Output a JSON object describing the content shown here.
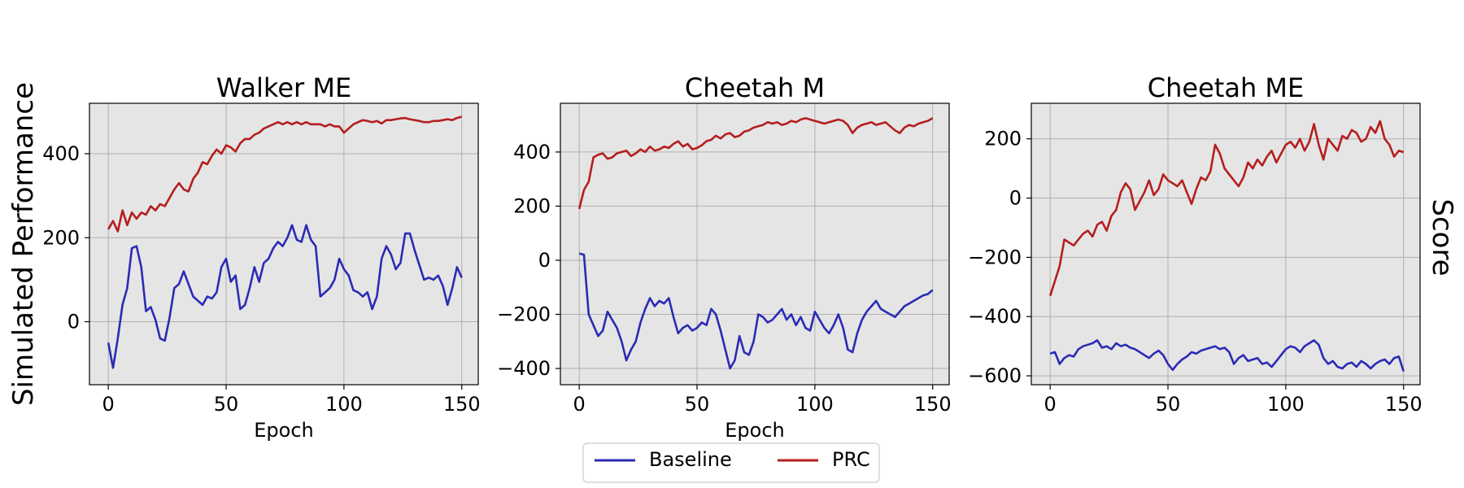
{
  "figure": {
    "ylabel_left": "Simulated Performance",
    "ylabel_right": "Score"
  },
  "legend": {
    "position": "bottom-center",
    "entries": [
      {
        "label": "Baseline",
        "color": "#2b2bb5"
      },
      {
        "label": "PRC",
        "color": "#b51e1e"
      }
    ]
  },
  "chart_data": [
    {
      "type": "line",
      "title": "Walker ME",
      "xlabel": "Epoch",
      "ylabel": "",
      "xlim": [
        -8,
        157
      ],
      "ylim": [
        -150,
        520
      ],
      "xticks": [
        0,
        50,
        100,
        150
      ],
      "yticks": [
        0,
        200,
        400
      ],
      "grid": true,
      "series": [
        {
          "name": "Baseline",
          "color": "#2b2bb5",
          "x": [
            0,
            2,
            4,
            6,
            8,
            10,
            12,
            14,
            16,
            18,
            20,
            22,
            24,
            26,
            28,
            30,
            32,
            34,
            36,
            38,
            40,
            42,
            44,
            46,
            48,
            50,
            52,
            54,
            56,
            58,
            60,
            62,
            64,
            66,
            68,
            70,
            72,
            74,
            76,
            78,
            80,
            82,
            84,
            86,
            88,
            90,
            92,
            94,
            96,
            98,
            100,
            102,
            104,
            106,
            108,
            110,
            112,
            114,
            116,
            118,
            120,
            122,
            124,
            126,
            128,
            130,
            132,
            134,
            136,
            138,
            140,
            142,
            144,
            146,
            148,
            150
          ],
          "y": [
            -50,
            -110,
            -40,
            40,
            80,
            175,
            180,
            130,
            25,
            35,
            5,
            -40,
            -45,
            10,
            80,
            90,
            120,
            90,
            60,
            50,
            40,
            60,
            55,
            70,
            130,
            150,
            95,
            110,
            30,
            40,
            80,
            130,
            95,
            140,
            150,
            175,
            190,
            180,
            200,
            230,
            195,
            190,
            230,
            195,
            180,
            60,
            70,
            80,
            100,
            150,
            125,
            110,
            75,
            70,
            60,
            70,
            30,
            60,
            150,
            180,
            160,
            125,
            140,
            210,
            210,
            170,
            135,
            100,
            105,
            100,
            110,
            85,
            40,
            80,
            130,
            105
          ]
        },
        {
          "name": "PRC",
          "color": "#b51e1e",
          "x": [
            0,
            2,
            4,
            6,
            8,
            10,
            12,
            14,
            16,
            18,
            20,
            22,
            24,
            26,
            28,
            30,
            32,
            34,
            36,
            38,
            40,
            42,
            44,
            46,
            48,
            50,
            52,
            54,
            56,
            58,
            60,
            62,
            64,
            66,
            68,
            70,
            72,
            74,
            76,
            78,
            80,
            82,
            84,
            86,
            88,
            90,
            92,
            94,
            96,
            98,
            100,
            102,
            104,
            106,
            108,
            110,
            112,
            114,
            116,
            118,
            120,
            122,
            124,
            126,
            128,
            130,
            132,
            134,
            136,
            138,
            140,
            142,
            144,
            146,
            148,
            150
          ],
          "y": [
            220,
            240,
            215,
            265,
            230,
            260,
            245,
            260,
            255,
            275,
            265,
            280,
            275,
            295,
            315,
            330,
            315,
            310,
            340,
            355,
            380,
            375,
            395,
            410,
            400,
            420,
            415,
            405,
            425,
            435,
            435,
            445,
            450,
            460,
            465,
            470,
            475,
            470,
            475,
            470,
            475,
            470,
            475,
            470,
            470,
            470,
            465,
            470,
            465,
            465,
            450,
            460,
            470,
            475,
            480,
            478,
            475,
            478,
            472,
            480,
            480,
            482,
            484,
            485,
            482,
            480,
            478,
            475,
            475,
            478,
            478,
            480,
            482,
            480,
            485,
            488
          ]
        }
      ]
    },
    {
      "type": "line",
      "title": "Cheetah M",
      "xlabel": "Epoch",
      "ylabel": "",
      "xlim": [
        -8,
        157
      ],
      "ylim": [
        -460,
        580
      ],
      "xticks": [
        0,
        50,
        100,
        150
      ],
      "yticks": [
        -400,
        -200,
        0,
        200,
        400
      ],
      "grid": true,
      "series": [
        {
          "name": "Baseline",
          "color": "#2b2bb5",
          "x": [
            0,
            2,
            4,
            6,
            8,
            10,
            12,
            14,
            16,
            18,
            20,
            22,
            24,
            26,
            28,
            30,
            32,
            34,
            36,
            38,
            40,
            42,
            44,
            46,
            48,
            50,
            52,
            54,
            56,
            58,
            60,
            62,
            64,
            66,
            68,
            70,
            72,
            74,
            76,
            78,
            80,
            82,
            84,
            86,
            88,
            90,
            92,
            94,
            96,
            98,
            100,
            102,
            104,
            106,
            108,
            110,
            112,
            114,
            116,
            118,
            120,
            122,
            124,
            126,
            128,
            130,
            132,
            134,
            136,
            138,
            140,
            142,
            144,
            146,
            148,
            150
          ],
          "y": [
            25,
            20,
            -200,
            -240,
            -280,
            -260,
            -190,
            -220,
            -250,
            -300,
            -370,
            -330,
            -300,
            -230,
            -180,
            -140,
            -170,
            -150,
            -160,
            -140,
            -210,
            -270,
            -250,
            -240,
            -260,
            -250,
            -230,
            -240,
            -180,
            -200,
            -260,
            -330,
            -400,
            -370,
            -280,
            -340,
            -350,
            -300,
            -200,
            -210,
            -230,
            -220,
            -200,
            -180,
            -220,
            -200,
            -240,
            -210,
            -250,
            -260,
            -190,
            -220,
            -250,
            -270,
            -240,
            -200,
            -250,
            -330,
            -340,
            -270,
            -220,
            -190,
            -170,
            -150,
            -180,
            -190,
            -200,
            -210,
            -190,
            -170,
            -160,
            -150,
            -140,
            -130,
            -125,
            -110
          ]
        },
        {
          "name": "PRC",
          "color": "#b51e1e",
          "x": [
            0,
            2,
            4,
            6,
            8,
            10,
            12,
            14,
            16,
            18,
            20,
            22,
            24,
            26,
            28,
            30,
            32,
            34,
            36,
            38,
            40,
            42,
            44,
            46,
            48,
            50,
            52,
            54,
            56,
            58,
            60,
            62,
            64,
            66,
            68,
            70,
            72,
            74,
            76,
            78,
            80,
            82,
            84,
            86,
            88,
            90,
            92,
            94,
            96,
            98,
            100,
            102,
            104,
            106,
            108,
            110,
            112,
            114,
            116,
            118,
            120,
            122,
            124,
            126,
            128,
            130,
            132,
            134,
            136,
            138,
            140,
            142,
            144,
            146,
            148,
            150
          ],
          "y": [
            190,
            260,
            290,
            380,
            390,
            395,
            375,
            380,
            395,
            400,
            405,
            385,
            395,
            410,
            400,
            420,
            405,
            410,
            420,
            415,
            430,
            440,
            420,
            430,
            410,
            415,
            425,
            440,
            445,
            460,
            450,
            465,
            470,
            455,
            460,
            475,
            480,
            490,
            495,
            500,
            510,
            505,
            510,
            500,
            505,
            515,
            510,
            520,
            525,
            520,
            515,
            510,
            505,
            510,
            515,
            520,
            515,
            500,
            470,
            490,
            500,
            505,
            510,
            500,
            505,
            510,
            495,
            480,
            470,
            490,
            500,
            495,
            505,
            510,
            515,
            525
          ]
        }
      ]
    },
    {
      "type": "line",
      "title": "Cheetah ME",
      "xlabel": "",
      "ylabel": "",
      "xlim": [
        -8,
        157
      ],
      "ylim": [
        -630,
        320
      ],
      "xticks": [
        0,
        50,
        100,
        150
      ],
      "yticks": [
        -600,
        -400,
        -200,
        0,
        200
      ],
      "grid": true,
      "series": [
        {
          "name": "Baseline",
          "color": "#2b2bb5",
          "x": [
            0,
            2,
            4,
            6,
            8,
            10,
            12,
            14,
            16,
            18,
            20,
            22,
            24,
            26,
            28,
            30,
            32,
            34,
            36,
            38,
            40,
            42,
            44,
            46,
            48,
            50,
            52,
            54,
            56,
            58,
            60,
            62,
            64,
            66,
            68,
            70,
            72,
            74,
            76,
            78,
            80,
            82,
            84,
            86,
            88,
            90,
            92,
            94,
            96,
            98,
            100,
            102,
            104,
            106,
            108,
            110,
            112,
            114,
            116,
            118,
            120,
            122,
            124,
            126,
            128,
            130,
            132,
            134,
            136,
            138,
            140,
            142,
            144,
            146,
            148,
            150
          ],
          "y": [
            -525,
            -520,
            -560,
            -540,
            -530,
            -535,
            -510,
            -500,
            -495,
            -490,
            -480,
            -505,
            -500,
            -510,
            -490,
            -500,
            -495,
            -505,
            -510,
            -520,
            -530,
            -540,
            -525,
            -515,
            -530,
            -560,
            -580,
            -560,
            -545,
            -535,
            -520,
            -525,
            -515,
            -510,
            -505,
            -500,
            -510,
            -505,
            -520,
            -560,
            -540,
            -530,
            -550,
            -545,
            -540,
            -560,
            -555,
            -570,
            -550,
            -530,
            -510,
            -500,
            -505,
            -520,
            -500,
            -490,
            -480,
            -495,
            -540,
            -560,
            -550,
            -570,
            -575,
            -560,
            -555,
            -570,
            -550,
            -560,
            -575,
            -560,
            -550,
            -545,
            -560,
            -540,
            -535,
            -585
          ]
        },
        {
          "name": "PRC",
          "color": "#b51e1e",
          "x": [
            0,
            2,
            4,
            6,
            8,
            10,
            12,
            14,
            16,
            18,
            20,
            22,
            24,
            26,
            28,
            30,
            32,
            34,
            36,
            38,
            40,
            42,
            44,
            46,
            48,
            50,
            52,
            54,
            56,
            58,
            60,
            62,
            64,
            66,
            68,
            70,
            72,
            74,
            76,
            78,
            80,
            82,
            84,
            86,
            88,
            90,
            92,
            94,
            96,
            98,
            100,
            102,
            104,
            106,
            108,
            110,
            112,
            114,
            116,
            118,
            120,
            122,
            124,
            126,
            128,
            130,
            132,
            134,
            136,
            138,
            140,
            142,
            144,
            146,
            148,
            150
          ],
          "y": [
            -330,
            -280,
            -230,
            -140,
            -150,
            -160,
            -140,
            -120,
            -110,
            -130,
            -90,
            -80,
            -110,
            -60,
            -40,
            20,
            50,
            30,
            -40,
            -10,
            20,
            60,
            10,
            30,
            80,
            60,
            50,
            40,
            60,
            20,
            -20,
            30,
            70,
            60,
            90,
            180,
            150,
            100,
            80,
            60,
            40,
            70,
            120,
            100,
            130,
            110,
            140,
            160,
            120,
            150,
            180,
            190,
            170,
            200,
            160,
            190,
            250,
            180,
            130,
            200,
            180,
            160,
            210,
            200,
            230,
            220,
            190,
            200,
            240,
            220,
            260,
            200,
            180,
            140,
            160,
            155
          ]
        }
      ]
    }
  ]
}
